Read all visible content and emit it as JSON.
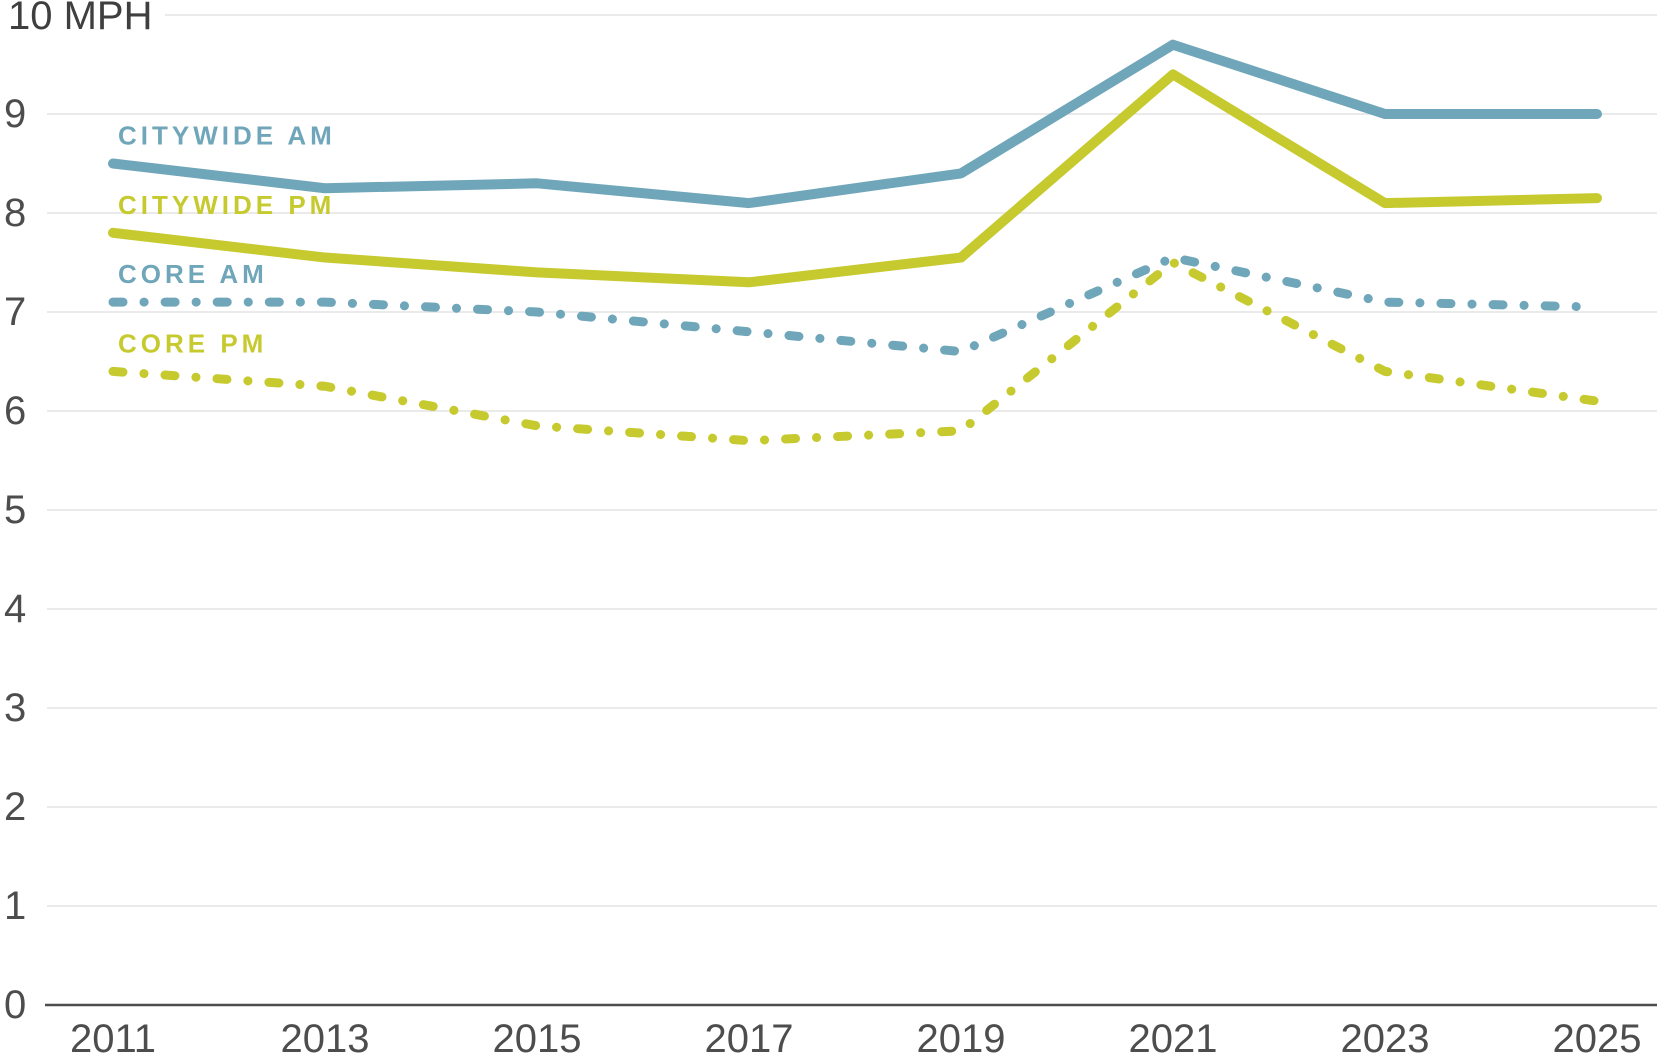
{
  "chart_data": {
    "type": "line",
    "top_tick_label": "10 MPH",
    "ylabel": "MPH",
    "x": [
      2011,
      2013,
      2015,
      2017,
      2019,
      2021,
      2023,
      2025
    ],
    "x_tick_labels": [
      "2011",
      "2013",
      "2015",
      "2017",
      "2019",
      "2021",
      "2023",
      "2025"
    ],
    "y_tick_labels": [
      "0",
      "1",
      "2",
      "3",
      "4",
      "5",
      "6",
      "7",
      "8",
      "9"
    ],
    "xlim": [
      2011,
      2025
    ],
    "ylim": [
      0,
      10
    ],
    "grid": true,
    "legend_position": "inline-left-above-series-start",
    "colors": {
      "am_blue": "#70a6b9",
      "pm_yellow": "#c6ca2f",
      "grid": "#e3e3e3",
      "axis": "#4d4d4d",
      "tick_text": "#4d4d4d",
      "top_label_text": "#3f3f3f"
    },
    "series": [
      {
        "name": "CITYWIDE AM",
        "color": "#70a6b9",
        "line_style": "solid",
        "values": [
          8.5,
          8.25,
          8.3,
          8.1,
          8.4,
          9.7,
          9.0,
          9.0
        ]
      },
      {
        "name": "CITYWIDE PM",
        "color": "#c6ca2f",
        "line_style": "solid",
        "values": [
          7.8,
          7.55,
          7.4,
          7.3,
          7.55,
          9.4,
          8.1,
          8.15
        ]
      },
      {
        "name": "CORE AM",
        "color": "#70a6b9",
        "line_style": "dash-dot",
        "values": [
          7.1,
          7.1,
          7.0,
          6.8,
          6.6,
          7.55,
          7.1,
          7.05
        ]
      },
      {
        "name": "CORE PM",
        "color": "#c6ca2f",
        "line_style": "dash-dot",
        "values": [
          6.4,
          6.25,
          5.85,
          5.7,
          5.8,
          7.5,
          6.4,
          6.1
        ]
      }
    ]
  }
}
